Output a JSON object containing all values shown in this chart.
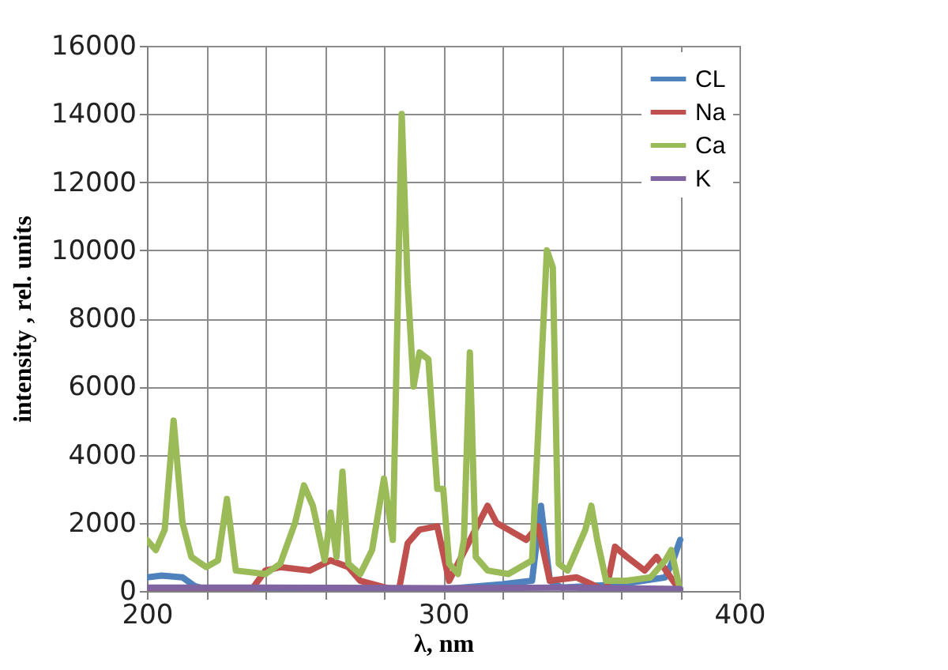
{
  "chart_data": {
    "type": "line",
    "xlabel": "λ, nm",
    "ylabel": "intensity , rel. units",
    "xlim": [
      200,
      400
    ],
    "ylim": [
      0,
      16000
    ],
    "xticks": [
      200,
      {
        "value": 220,
        "label": null
      },
      {
        "value": 240,
        "label": null
      },
      {
        "value": 260,
        "label": null
      },
      {
        "value": 280,
        "label": null
      },
      300,
      {
        "value": 320,
        "label": null
      },
      {
        "value": 340,
        "label": null
      },
      {
        "value": 360,
        "label": null
      },
      {
        "value": 380,
        "label": null
      },
      400
    ],
    "yticks": [
      0,
      2000,
      4000,
      6000,
      8000,
      10000,
      12000,
      14000,
      16000
    ],
    "grid": true,
    "legend": "top right",
    "marker": "none",
    "line_style": "solid",
    "series": [
      {
        "name": "CL",
        "color": "#4f81bd",
        "x": [
          200,
          205,
          212,
          216,
          220,
          300,
          320,
          330,
          333,
          336,
          340,
          360,
          375,
          378,
          380
        ],
        "values": [
          400,
          450,
          400,
          150,
          50,
          50,
          200,
          300,
          2500,
          300,
          100,
          200,
          400,
          1000,
          1500
        ]
      },
      {
        "name": "Na",
        "color": "#c0504d",
        "x": [
          200,
          235,
          240,
          245,
          255,
          262,
          268,
          272,
          285,
          288,
          292,
          298,
          302,
          315,
          318,
          322,
          328,
          332,
          336,
          345,
          355,
          358,
          362,
          368,
          372,
          376,
          380
        ],
        "values": [
          0,
          0,
          600,
          700,
          600,
          900,
          700,
          300,
          0,
          1400,
          1800,
          1900,
          300,
          2500,
          2000,
          1800,
          1500,
          1900,
          300,
          400,
          0,
          1300,
          1000,
          600,
          1000,
          500,
          0
        ]
      },
      {
        "name": "Ca",
        "color": "#9bbb59",
        "x": [
          200,
          203,
          206,
          209,
          212,
          215,
          220,
          224,
          227,
          230,
          240,
          245,
          250,
          253,
          256,
          260,
          262,
          264,
          266,
          268,
          272,
          276,
          280,
          283,
          286,
          288,
          290,
          292,
          295,
          298,
          300,
          302,
          305,
          307,
          309,
          311,
          315,
          322,
          330,
          335,
          337,
          339,
          342,
          348,
          350,
          352,
          355,
          362,
          370,
          375,
          377,
          380
        ],
        "values": [
          1500,
          1200,
          1800,
          5000,
          2000,
          1000,
          700,
          900,
          2700,
          600,
          500,
          800,
          2000,
          3100,
          2500,
          900,
          2300,
          1000,
          3500,
          800,
          500,
          1200,
          3300,
          1500,
          14000,
          9000,
          6000,
          7000,
          6800,
          3000,
          3000,
          800,
          500,
          1500,
          7000,
          1000,
          600,
          500,
          900,
          10000,
          9500,
          800,
          600,
          1800,
          2500,
          1500,
          300,
          300,
          400,
          900,
          1200,
          0
        ]
      },
      {
        "name": "K",
        "color": "#8064a2",
        "x": [
          200,
          240,
          300,
          340,
          380
        ],
        "values": [
          100,
          100,
          80,
          100,
          60
        ]
      }
    ]
  }
}
